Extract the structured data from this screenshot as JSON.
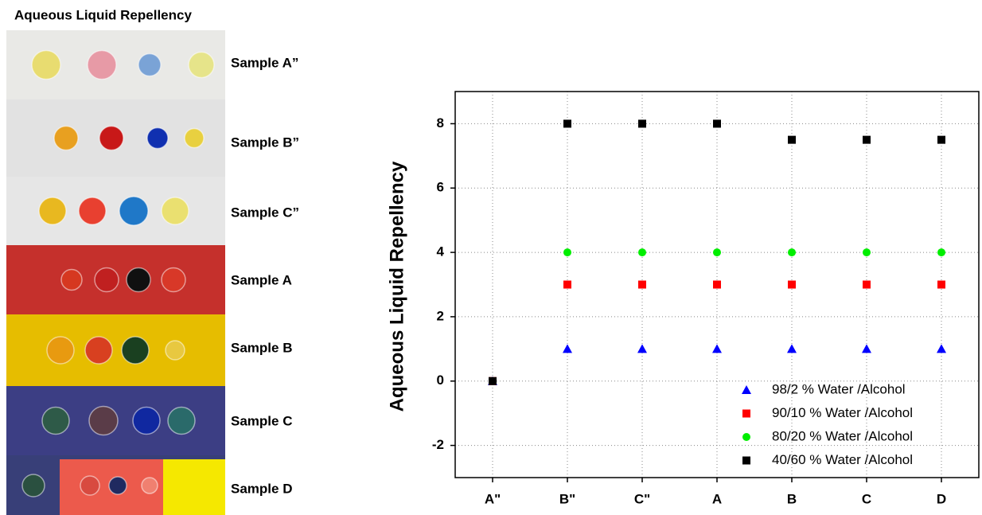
{
  "panel": {
    "title": "Aqueous Liquid Repellency",
    "samples": [
      "Sample A”",
      "Sample B”",
      "Sample C”",
      "Sample A",
      "Sample B",
      "Sample C",
      "Sample D"
    ]
  },
  "chart_data": {
    "type": "scatter",
    "y_label": "Aqueous Liquid Repellency",
    "categories": [
      "A\"",
      "B\"",
      "C\"",
      "A",
      "B",
      "C",
      "D"
    ],
    "series": [
      {
        "name": "98/2 % Water /Alcohol",
        "color": "#0000ff",
        "marker": "triangle",
        "values": [
          0,
          1,
          1,
          1,
          1,
          1,
          1
        ]
      },
      {
        "name": "90/10 % Water /Alcohol",
        "color": "#ff0000",
        "marker": "square",
        "values": [
          0,
          3,
          3,
          3,
          3,
          3,
          3
        ]
      },
      {
        "name": "80/20 % Water /Alcohol",
        "color": "#00ee00",
        "marker": "circle",
        "values": [
          0,
          4,
          4,
          4,
          4,
          4,
          4
        ]
      },
      {
        "name": "40/60 % Water /Alcohol",
        "color": "#000000",
        "marker": "square",
        "values": [
          0,
          8,
          8,
          8,
          7.5,
          7.5,
          7.5
        ]
      }
    ],
    "ylim": [
      -3,
      9
    ],
    "yticks": [
      -2,
      0,
      2,
      4,
      6,
      8
    ],
    "grid": true,
    "legend": "lower right"
  }
}
